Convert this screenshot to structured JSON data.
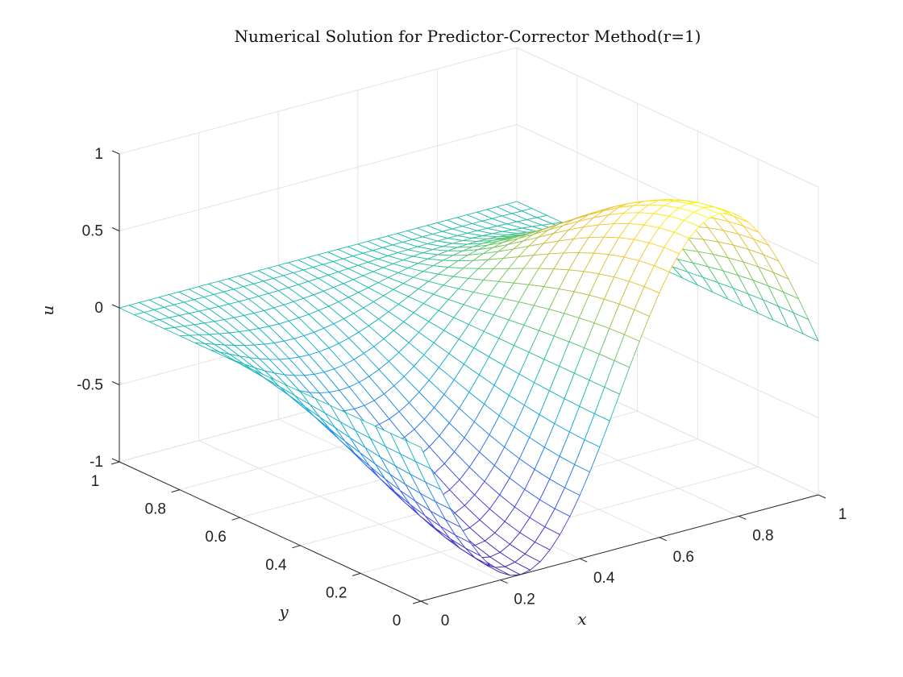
{
  "chart_data": {
    "type": "surface",
    "title": "Numerical Solution for Predictor-Corrector Method(r=1)",
    "xlabel": "x",
    "ylabel": "y",
    "zlabel": "u",
    "xlim": [
      0,
      1
    ],
    "ylim": [
      0,
      1
    ],
    "zlim": [
      -1,
      1
    ],
    "x_ticks": [
      "0",
      "0.2",
      "0.4",
      "0.6",
      "0.8",
      "1"
    ],
    "y_ticks": [
      "0",
      "0.2",
      "0.4",
      "0.6",
      "0.8",
      "1"
    ],
    "z_ticks": [
      "-1",
      "-0.5",
      "0",
      "0.5",
      "1"
    ],
    "grid": true,
    "colormap": "parula",
    "mesh": {
      "x_samples": 41,
      "y_samples": 21,
      "function": "u(x,y) = -sin(2*pi*x) * (0.5 + 0.5*cos(pi*y))"
    },
    "edge_values": {
      "x": [
        0,
        0.25,
        0.5,
        0.75,
        1
      ],
      "u_at_y0": [
        0,
        -1,
        0,
        1,
        0
      ],
      "u_at_y1": [
        0,
        0,
        0,
        0,
        0
      ]
    }
  }
}
